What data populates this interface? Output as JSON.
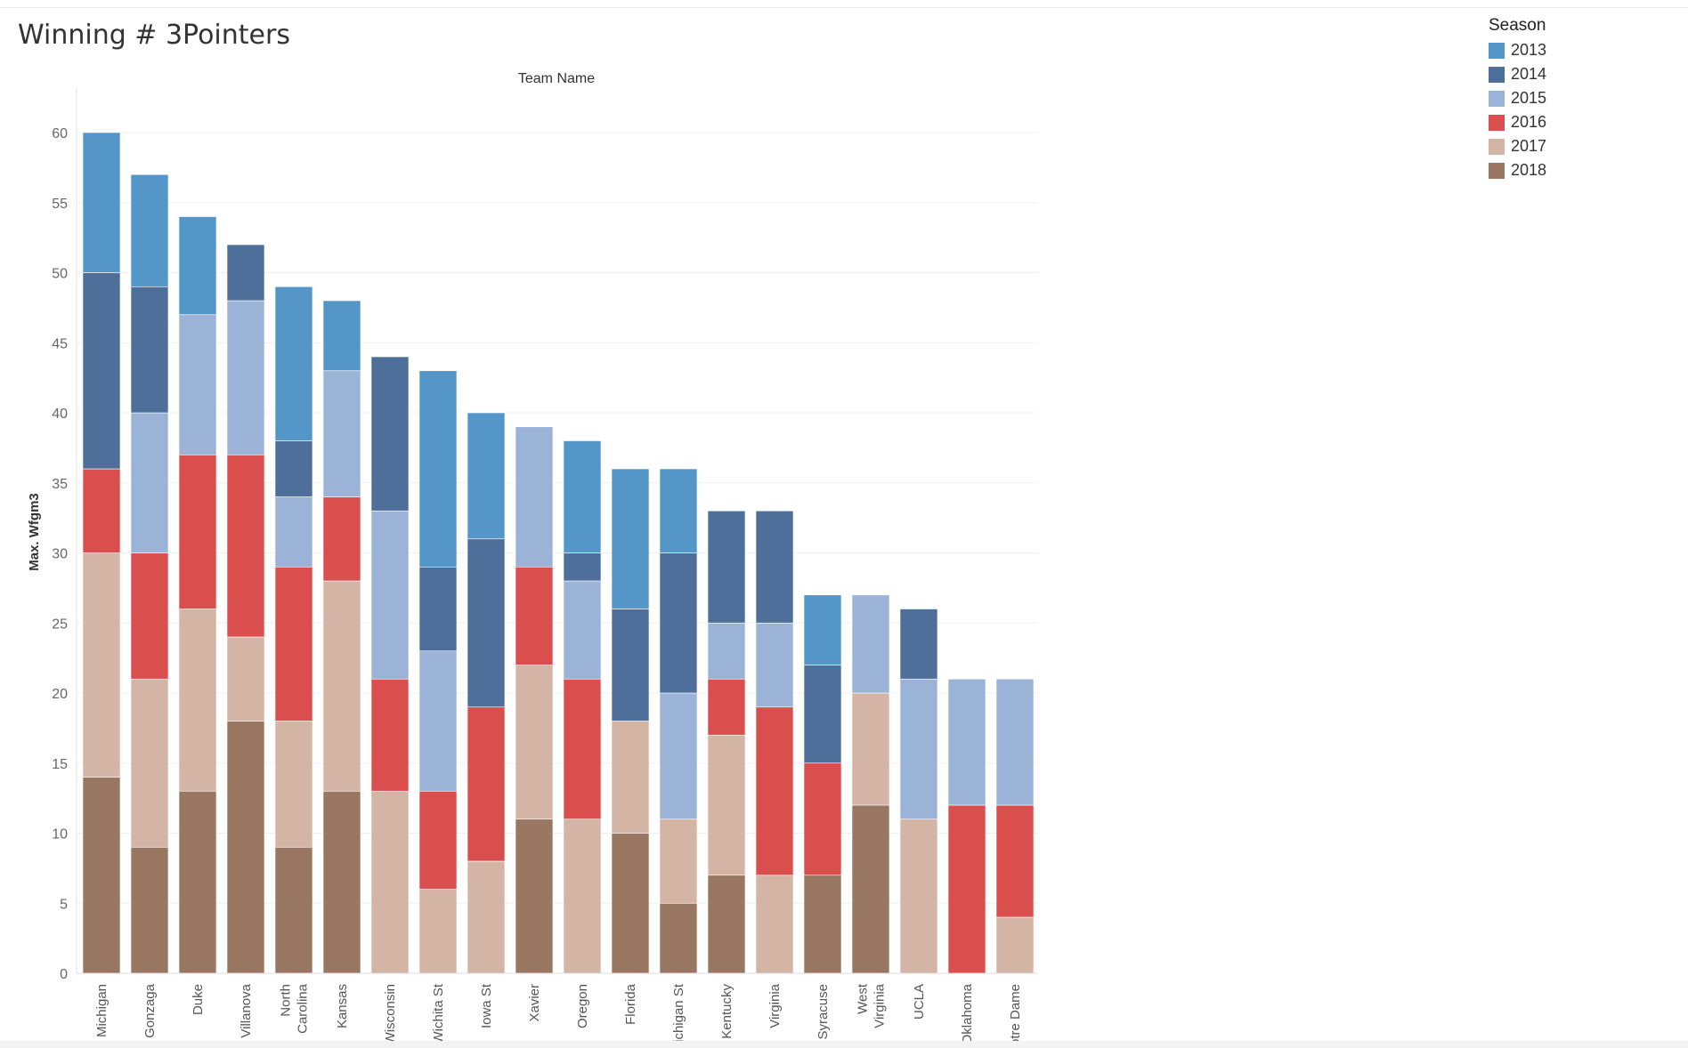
{
  "page": {
    "title": "Winning # 3Pointers"
  },
  "legend": {
    "title": "Season",
    "items": [
      {
        "label": "2013",
        "color": "#5396c7"
      },
      {
        "label": "2014",
        "color": "#4f6f9b"
      },
      {
        "label": "2015",
        "color": "#9bb3d6"
      },
      {
        "label": "2016",
        "color": "#da4f4e"
      },
      {
        "label": "2017",
        "color": "#d4b5a5"
      },
      {
        "label": "2018",
        "color": "#9a7762"
      }
    ]
  },
  "chart_data": {
    "type": "bar",
    "stacked": true,
    "top_label": "Team Name",
    "ylabel": "Max. Wfgm3",
    "ylim": [
      0,
      60
    ],
    "yticks": [
      0,
      5,
      10,
      15,
      20,
      25,
      30,
      35,
      40,
      45,
      50,
      55,
      60
    ],
    "grid": true,
    "legend_position": "top-right",
    "categories": [
      "Michigan",
      "Gonzaga",
      "Duke",
      "Villanova",
      "North Carolina",
      "Kansas",
      "Wisconsin",
      "Wichita St",
      "Iowa St",
      "Xavier",
      "Oregon",
      "Florida",
      "Michigan St",
      "Kentucky",
      "Virginia",
      "Syracuse",
      "West Virginia",
      "UCLA",
      "Oklahoma",
      "Notre Dame"
    ],
    "category_lines": [
      [
        "Michigan"
      ],
      [
        "Gonzaga"
      ],
      [
        "Duke"
      ],
      [
        "Villanova"
      ],
      [
        "North",
        "Carolina"
      ],
      [
        "Kansas"
      ],
      [
        "Wisconsin"
      ],
      [
        "Wichita St"
      ],
      [
        "Iowa St"
      ],
      [
        "Xavier"
      ],
      [
        "Oregon"
      ],
      [
        "Florida"
      ],
      [
        "Michigan St"
      ],
      [
        "Kentucky"
      ],
      [
        "Virginia"
      ],
      [
        "Syracuse"
      ],
      [
        "West",
        "Virginia"
      ],
      [
        "UCLA"
      ],
      [
        "Oklahoma"
      ],
      [
        "Notre Dame"
      ]
    ],
    "series": [
      {
        "name": "2018",
        "values": [
          14,
          9,
          13,
          18,
          9,
          13,
          0,
          0,
          0,
          11,
          0,
          10,
          5,
          7,
          0,
          7,
          12,
          0,
          0,
          0
        ]
      },
      {
        "name": "2017",
        "values": [
          16,
          12,
          13,
          6,
          9,
          15,
          13,
          6,
          8,
          11,
          11,
          8,
          6,
          10,
          7,
          0,
          8,
          11,
          0,
          4
        ]
      },
      {
        "name": "2016",
        "values": [
          6,
          9,
          11,
          13,
          11,
          6,
          8,
          7,
          11,
          7,
          10,
          0,
          0,
          4,
          12,
          8,
          0,
          0,
          12,
          8
        ]
      },
      {
        "name": "2015",
        "values": [
          0,
          10,
          10,
          11,
          5,
          9,
          12,
          10,
          0,
          10,
          7,
          0,
          9,
          4,
          6,
          0,
          7,
          10,
          9,
          9
        ]
      },
      {
        "name": "2014",
        "values": [
          14,
          9,
          0,
          4,
          4,
          0,
          11,
          6,
          12,
          0,
          2,
          8,
          10,
          8,
          8,
          7,
          0,
          5,
          0,
          0
        ]
      },
      {
        "name": "2013",
        "values": [
          10,
          8,
          7,
          0,
          11,
          5,
          0,
          14,
          9,
          0,
          8,
          10,
          6,
          0,
          0,
          5,
          0,
          0,
          0,
          0
        ]
      }
    ]
  }
}
